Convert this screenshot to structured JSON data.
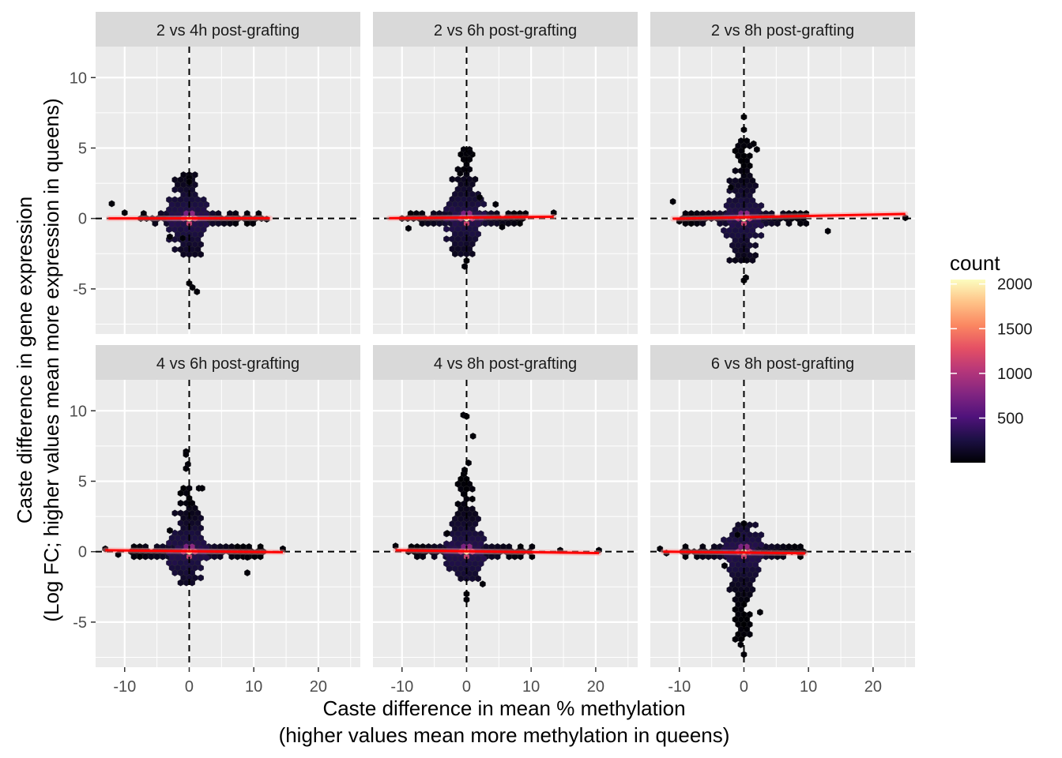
{
  "chart_data": {
    "type": "hexbin-scatter",
    "facet_layout": "2x3 grid",
    "xlabel": [
      "Caste difference in mean % methylation",
      "(higher values mean more methylation in queens)"
    ],
    "ylabel": [
      "Caste difference in gene expression",
      "(Log FC; higher values mean more expression in queens)"
    ],
    "xlim": [
      -14.5,
      26.5
    ],
    "ylim": [
      -8.2,
      12.2
    ],
    "x_ticks": [
      -10,
      0,
      10,
      20
    ],
    "x_tick_labels": [
      "-10",
      "0",
      "10",
      "20"
    ],
    "y_ticks": [
      -5,
      0,
      5,
      10
    ],
    "y_tick_labels": [
      "-5",
      "0",
      "5",
      "10"
    ],
    "grid": true,
    "reference_lines": {
      "x": 0,
      "y": 0,
      "style": "dashed",
      "color": "#000000"
    },
    "fit_line_color": "#ff0000",
    "legend": {
      "title": "count",
      "position": "right",
      "range": [
        1,
        2050
      ],
      "ticks": [
        500,
        1000,
        1500,
        2000
      ],
      "tick_labels": [
        "500",
        "1000",
        "1500",
        "2000"
      ],
      "colormap": "magma",
      "colors": [
        "#000004",
        "#1c1044",
        "#4f127b",
        "#812581",
        "#b5367a",
        "#e55064",
        "#fb8761",
        "#fec287",
        "#fcfdbf"
      ]
    },
    "panels": [
      {
        "title": "2 vs 4h post-grafting",
        "fit_line": {
          "x": [
            -12.5,
            12.5
          ],
          "y": [
            0.0,
            0.02
          ]
        },
        "horizontal_spread": [
          -7.5,
          11.5
        ],
        "vertical_spread": [
          -2.8,
          3.1
        ],
        "outliers": [
          [
            -12,
            1.05
          ],
          [
            -10,
            0.4
          ],
          [
            -1,
            -1.4
          ],
          [
            -3,
            -1.3
          ],
          [
            0,
            -4.6
          ],
          [
            0.5,
            -4.9
          ],
          [
            1.2,
            -5.2
          ],
          [
            0,
            2.9
          ],
          [
            0,
            2.6
          ],
          [
            12,
            -0.05
          ]
        ]
      },
      {
        "title": "2 vs 6h post-grafting",
        "fit_line": {
          "x": [
            -12,
            13.5
          ],
          "y": [
            0.02,
            0.12
          ]
        },
        "horizontal_spread": [
          -10,
          9.5
        ],
        "vertical_spread": [
          -2.8,
          4.9
        ],
        "outliers": [
          [
            13.5,
            0.4
          ],
          [
            -9,
            -0.7
          ],
          [
            4.5,
            1.0
          ],
          [
            5.5,
            -0.6
          ],
          [
            -1,
            3.2
          ],
          [
            0,
            4.6
          ],
          [
            0.5,
            4.7
          ],
          [
            -0.3,
            -3.4
          ],
          [
            0,
            -3.0
          ],
          [
            2,
            1.5
          ]
        ]
      },
      {
        "title": "2 vs 8h post-grafting",
        "fit_line": {
          "x": [
            -11,
            25
          ],
          "y": [
            -0.02,
            0.32
          ]
        },
        "horizontal_spread": [
          -9.5,
          10
        ],
        "vertical_spread": [
          -3.2,
          5.5
        ],
        "outliers": [
          [
            -11,
            1.2
          ],
          [
            -10,
            -0.2
          ],
          [
            25,
            0.05
          ],
          [
            13,
            -0.9
          ],
          [
            0,
            7.2
          ],
          [
            1.5,
            5.3
          ],
          [
            2,
            4.9
          ],
          [
            0.3,
            -4.2
          ],
          [
            0,
            -4.4
          ],
          [
            0,
            6.3
          ],
          [
            -2,
            2.2
          ]
        ]
      },
      {
        "title": "4 vs 6h post-grafting",
        "fit_line": {
          "x": [
            -13,
            14.5
          ],
          "y": [
            0.1,
            -0.04
          ]
        },
        "horizontal_spread": [
          -9,
          11.5
        ],
        "vertical_spread": [
          -2.4,
          4.5
        ],
        "outliers": [
          [
            -13,
            0.2
          ],
          [
            14.5,
            0.2
          ],
          [
            -11,
            -0.2
          ],
          [
            9,
            -1.5
          ],
          [
            -3,
            1.5
          ],
          [
            -0.5,
            7.1
          ],
          [
            -0.5,
            6.9
          ],
          [
            -0.2,
            6.2
          ],
          [
            -0.5,
            5.9
          ],
          [
            1.5,
            4.5
          ],
          [
            2,
            4.5
          ],
          [
            9,
            -0.4
          ]
        ]
      },
      {
        "title": "4 vs 8h post-grafting",
        "fit_line": {
          "x": [
            -11,
            20.5
          ],
          "y": [
            0.1,
            -0.1
          ]
        },
        "horizontal_spread": [
          -9,
          10.5
        ],
        "vertical_spread": [
          -2.1,
          5.5
        ],
        "outliers": [
          [
            -11,
            0.4
          ],
          [
            20.5,
            0.1
          ],
          [
            14.5,
            0.1
          ],
          [
            -0.5,
            9.7
          ],
          [
            0,
            9.6
          ],
          [
            1,
            8.2
          ],
          [
            0.3,
            6.3
          ],
          [
            -0.3,
            5.8
          ],
          [
            0,
            -3.4
          ],
          [
            0,
            -3.0
          ],
          [
            -3,
            1.3
          ],
          [
            2.5,
            -2.3
          ]
        ]
      },
      {
        "title": "6 vs 8h post-grafting",
        "fit_line": {
          "x": [
            -12.5,
            9.5
          ],
          "y": [
            0.0,
            -0.12
          ]
        },
        "horizontal_spread": [
          -9.5,
          9.5
        ],
        "vertical_spread": [
          -6.5,
          1.9
        ],
        "outliers": [
          [
            -13,
            0.2
          ],
          [
            -12,
            -0.1
          ],
          [
            0,
            -7.3
          ],
          [
            -0.5,
            -6.6
          ],
          [
            2.5,
            -4.3
          ],
          [
            -3,
            -1.0
          ],
          [
            -1,
            1.2
          ],
          [
            0,
            2.0
          ]
        ]
      }
    ]
  }
}
